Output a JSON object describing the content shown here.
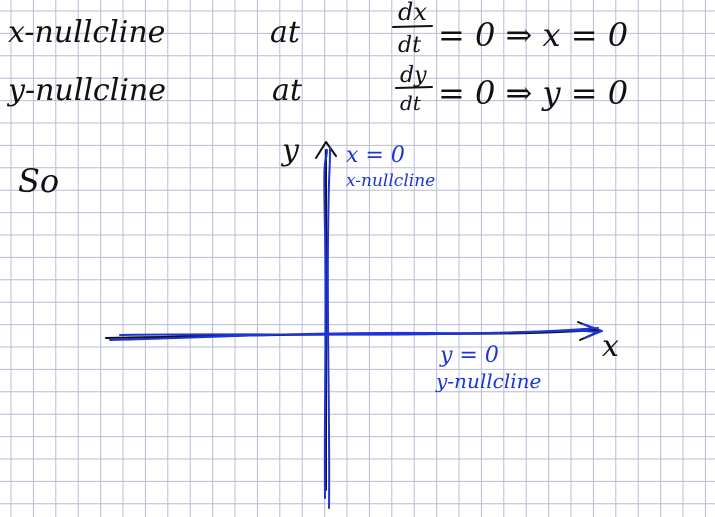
{
  "colors": {
    "paper": "#ffffff",
    "grid": "#b8bcd8",
    "black_ink": "#111111",
    "blue_ink": "#1c34d8"
  },
  "notes": {
    "line1": {
      "lead": "x-nullcline",
      "word": "at",
      "frac_num": "dx",
      "frac_den": "dt",
      "eq": "= 0 ⇒ x = 0"
    },
    "line2": {
      "lead": "y-nullcline",
      "word": "at",
      "frac_num": "dy",
      "frac_den": "dt",
      "eq": "= 0 ⇒ y = 0"
    },
    "so": "So"
  },
  "axes": {
    "x_label": "x",
    "y_label": "y"
  },
  "annotations": {
    "x_nullcline_eq": "x = 0",
    "x_nullcline_name": "x-nullcline",
    "y_nullcline_eq": "y = 0",
    "y_nullcline_name": "y-nullcline"
  }
}
